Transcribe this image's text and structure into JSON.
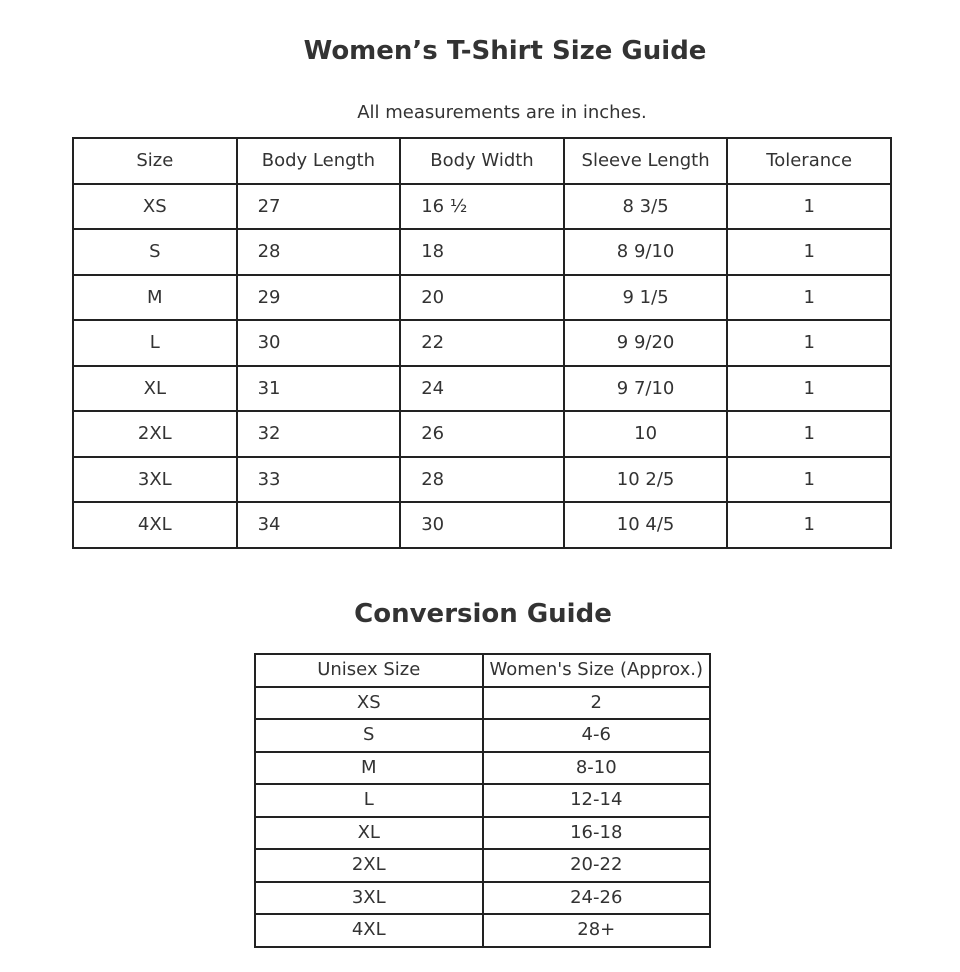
{
  "title": "Women’s T-Shirt Size Guide",
  "subtitle": "All measurements are in inches.",
  "size_table": {
    "headers": [
      "Size",
      "Body Length",
      "Body Width",
      "Sleeve Length",
      "Tolerance"
    ],
    "rows": [
      [
        "XS",
        "27",
        "16 ½",
        "8 3/5",
        "1"
      ],
      [
        "S",
        "28",
        "18",
        "8 9/10",
        "1"
      ],
      [
        "M",
        "29",
        "20",
        "9 1/5",
        "1"
      ],
      [
        "L",
        "30",
        "22",
        "9 9/20",
        "1"
      ],
      [
        "XL",
        "31",
        "24",
        "9 7/10",
        "1"
      ],
      [
        "2XL",
        "32",
        "26",
        "10",
        "1"
      ],
      [
        "3XL",
        "33",
        "28",
        "10 2/5",
        "1"
      ],
      [
        "4XL",
        "34",
        "30",
        "10 4/5",
        "1"
      ]
    ]
  },
  "conversion_title": "Conversion Guide",
  "conversion_table": {
    "headers": [
      "Unisex Size",
      "Women's Size (Approx.)"
    ],
    "rows": [
      [
        "XS",
        "2"
      ],
      [
        "S",
        "4-6"
      ],
      [
        "M",
        "8-10"
      ],
      [
        "L",
        "12-14"
      ],
      [
        "XL",
        "16-18"
      ],
      [
        "2XL",
        "20-22"
      ],
      [
        "3XL",
        "24-26"
      ],
      [
        "4XL",
        "28+"
      ]
    ]
  }
}
